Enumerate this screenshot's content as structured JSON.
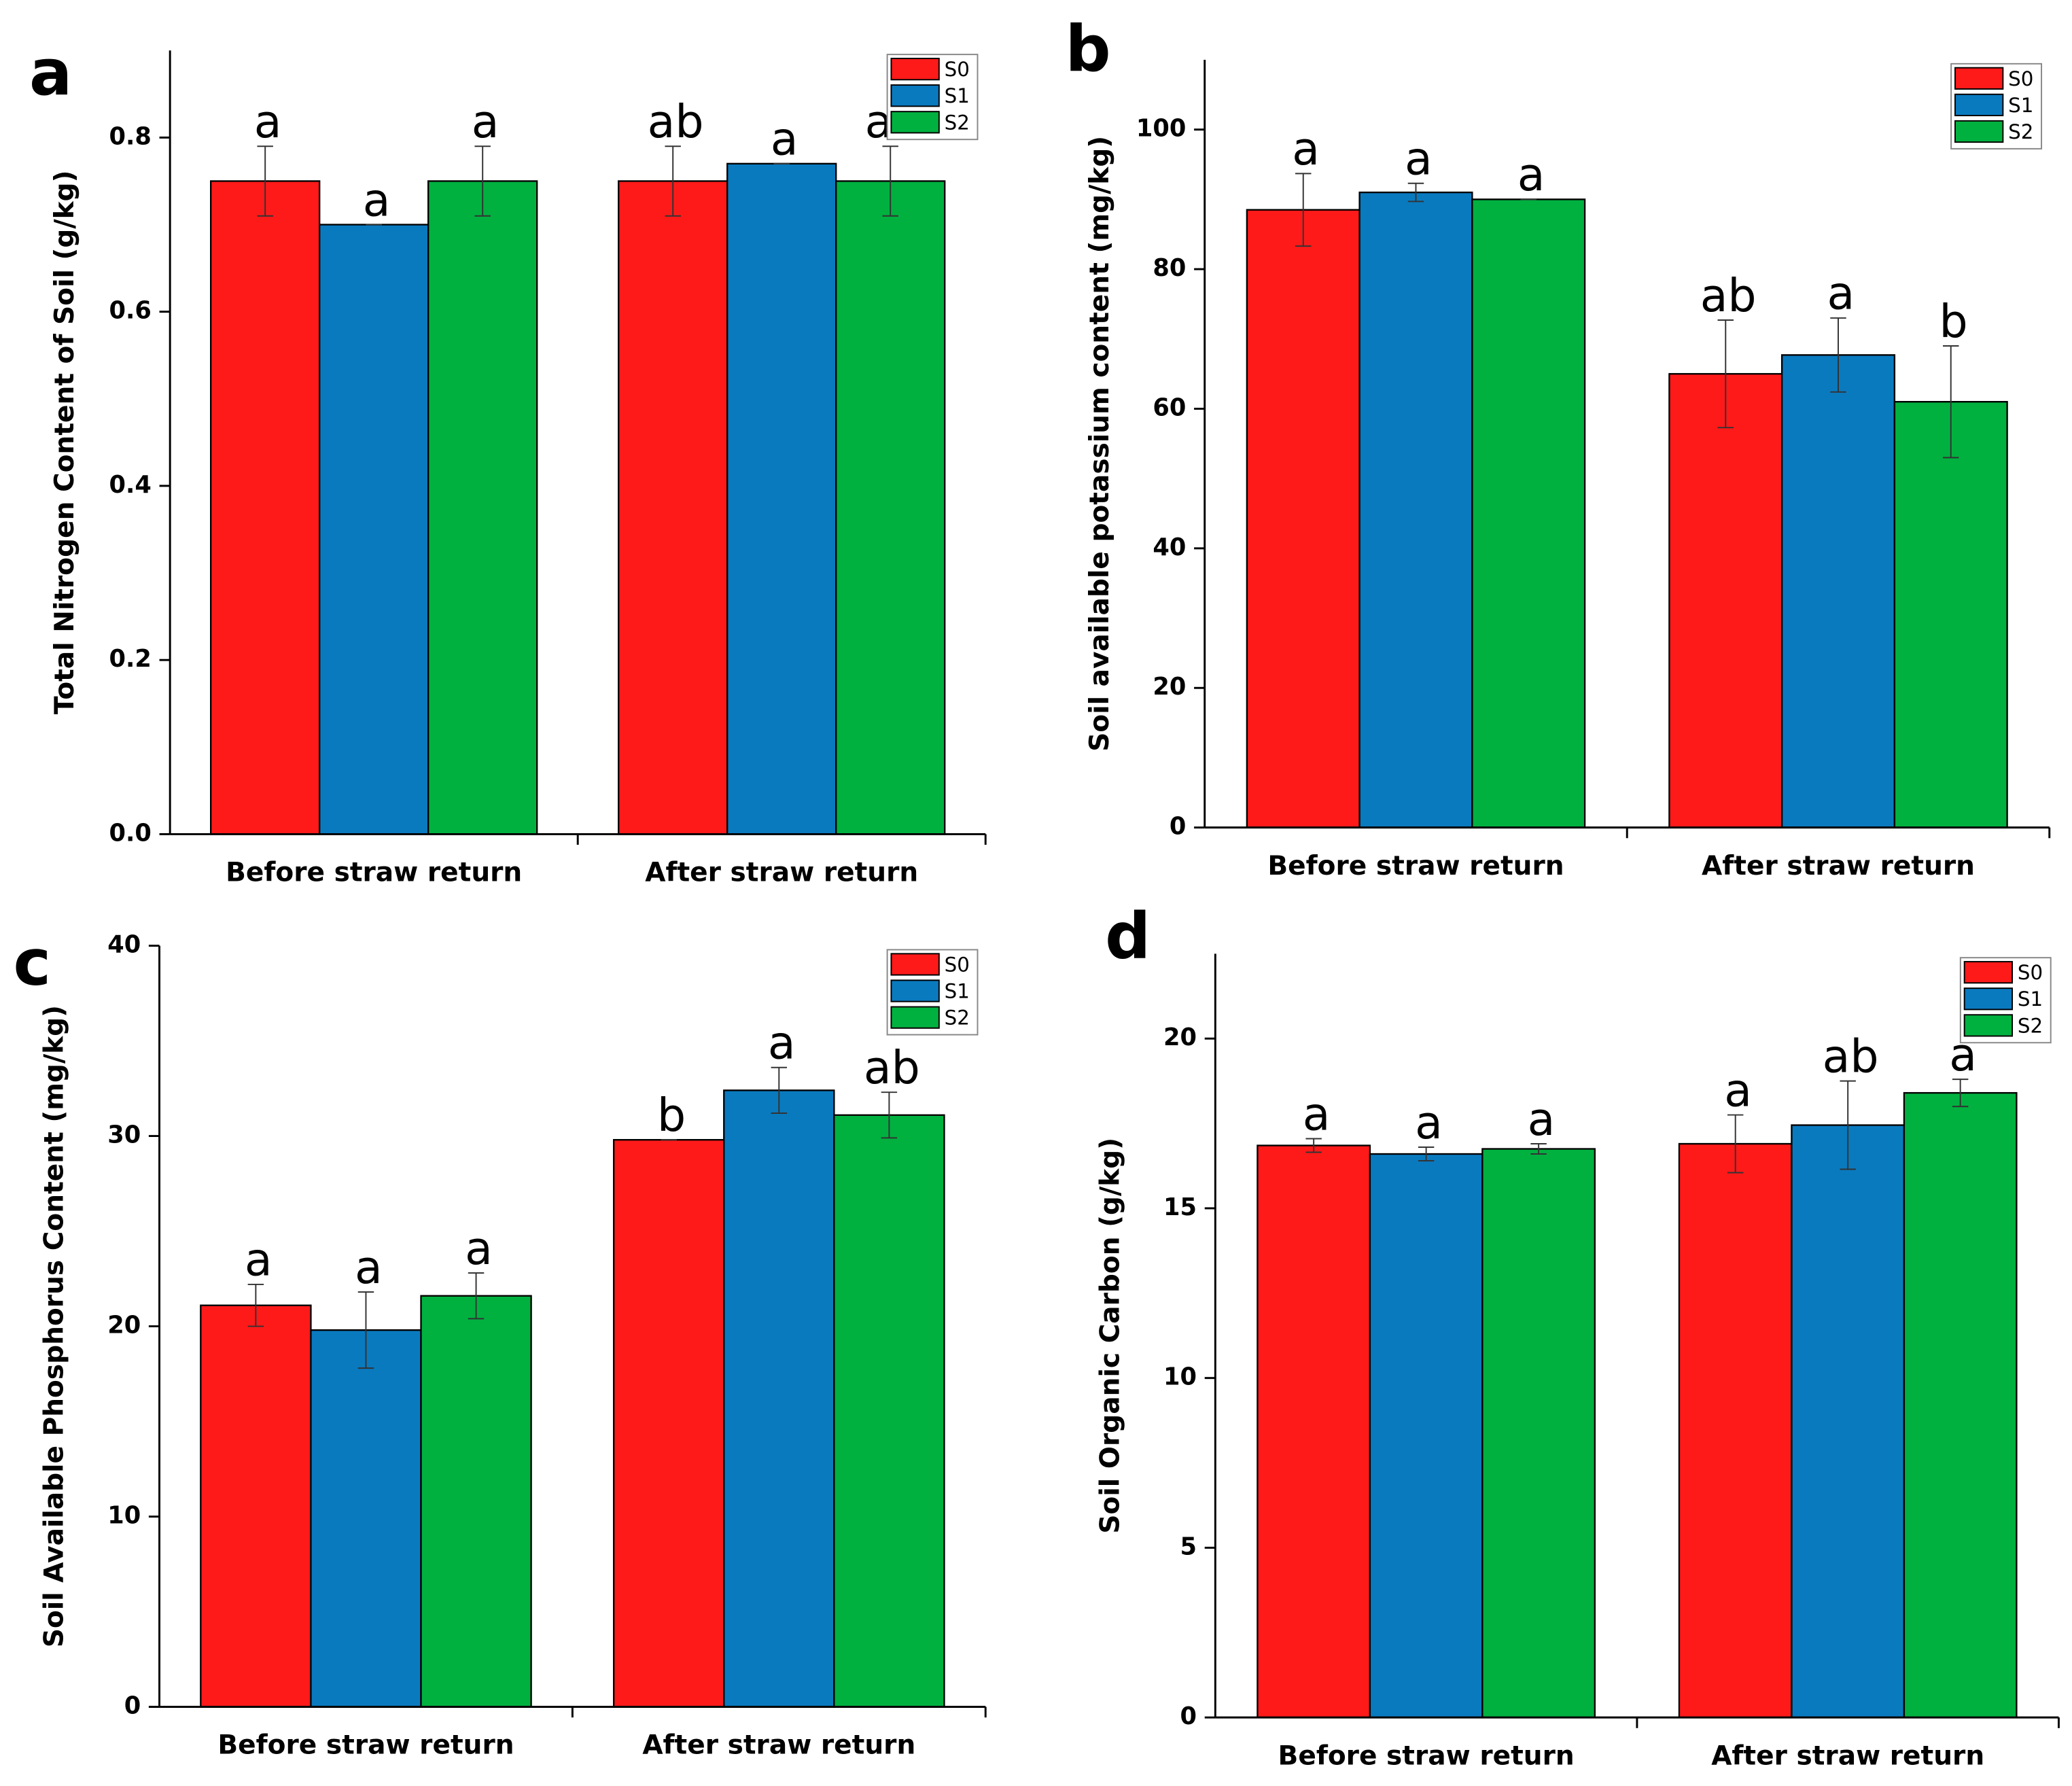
{
  "chart_data": [
    {
      "type": "bar",
      "panel": "a",
      "ylabel": "Total Nitrogen Content of Soil (g/kg)",
      "categories": [
        "Before straw return",
        "After straw return"
      ],
      "series": [
        {
          "name": "S0",
          "color": "#ff1a1a",
          "values": [
            0.75,
            0.75
          ],
          "errors": [
            0.04,
            0.04
          ],
          "letters": [
            "a",
            "ab"
          ]
        },
        {
          "name": "S1",
          "color": "#0a7abf",
          "values": [
            0.7,
            0.77
          ],
          "errors": [
            0,
            0
          ],
          "letters": [
            "a",
            "a"
          ]
        },
        {
          "name": "S2",
          "color": "#00b140",
          "values": [
            0.75,
            0.75
          ],
          "errors": [
            0.04,
            0.04
          ],
          "letters": [
            "a",
            "ab"
          ]
        }
      ],
      "ylim": [
        0,
        0.9
      ],
      "yticks": [
        {
          "value": 0,
          "label": "0.0"
        },
        0.2,
        0.4,
        0.6,
        0.8
      ],
      "legend": "upper right"
    },
    {
      "type": "bar",
      "panel": "b",
      "ylabel": "Soil available potassium content (mg/kg)",
      "categories": [
        "Before straw return",
        "After straw return"
      ],
      "series": [
        {
          "name": "S0",
          "color": "#ff1a1a",
          "values": [
            88.5,
            65
          ],
          "errors": [
            5.2,
            7.7
          ],
          "letters": [
            "a",
            "ab"
          ]
        },
        {
          "name": "S1",
          "color": "#0a7abf",
          "values": [
            91,
            67.7
          ],
          "errors": [
            1.3,
            5.3
          ],
          "letters": [
            "a",
            "a"
          ]
        },
        {
          "name": "S2",
          "color": "#00b140",
          "values": [
            90,
            61
          ],
          "errors": [
            0,
            8
          ],
          "letters": [
            "a",
            "b"
          ]
        }
      ],
      "ylim": [
        0,
        110
      ],
      "yticks": [
        0,
        20,
        40,
        60,
        80,
        100
      ],
      "legend": "upper right"
    },
    {
      "type": "bar",
      "panel": "c",
      "ylabel": "Soil Available Phosphorus Content (mg/kg)",
      "categories": [
        "Before straw return",
        "After straw return"
      ],
      "series": [
        {
          "name": "S0",
          "color": "#ff1a1a",
          "values": [
            21.1,
            29.8
          ],
          "errors": [
            1.1,
            0
          ],
          "letters": [
            "a",
            "b"
          ]
        },
        {
          "name": "S1",
          "color": "#0a7abf",
          "values": [
            19.8,
            32.4
          ],
          "errors": [
            2,
            1.2
          ],
          "letters": [
            "a",
            "a"
          ]
        },
        {
          "name": "S2",
          "color": "#00b140",
          "values": [
            21.6,
            31.1
          ],
          "errors": [
            1.2,
            1.2
          ],
          "letters": [
            "a",
            "ab"
          ]
        }
      ],
      "ylim": [
        0,
        40
      ],
      "yticks": [
        0,
        10,
        20,
        30,
        40
      ],
      "legend": "upper right"
    },
    {
      "type": "bar",
      "panel": "d",
      "ylabel": "Soil Organic Carbon (g/kg)",
      "categories": [
        "Before straw return",
        "After straw return"
      ],
      "series": [
        {
          "name": "S0",
          "color": "#ff1a1a",
          "values": [
            16.85,
            16.9
          ],
          "errors": [
            0.2,
            0.85
          ],
          "letters": [
            "a",
            "a"
          ]
        },
        {
          "name": "S1",
          "color": "#0a7abf",
          "values": [
            16.6,
            17.45
          ],
          "errors": [
            0.2,
            1.3
          ],
          "letters": [
            "a",
            "ab"
          ]
        },
        {
          "name": "S2",
          "color": "#00b140",
          "values": [
            16.75,
            18.4
          ],
          "errors": [
            0.15,
            0.4
          ],
          "letters": [
            "a",
            "a"
          ]
        }
      ],
      "ylim": [
        0,
        22.5
      ],
      "yticks": [
        0,
        5,
        10,
        15,
        20
      ],
      "legend": "upper right"
    }
  ]
}
